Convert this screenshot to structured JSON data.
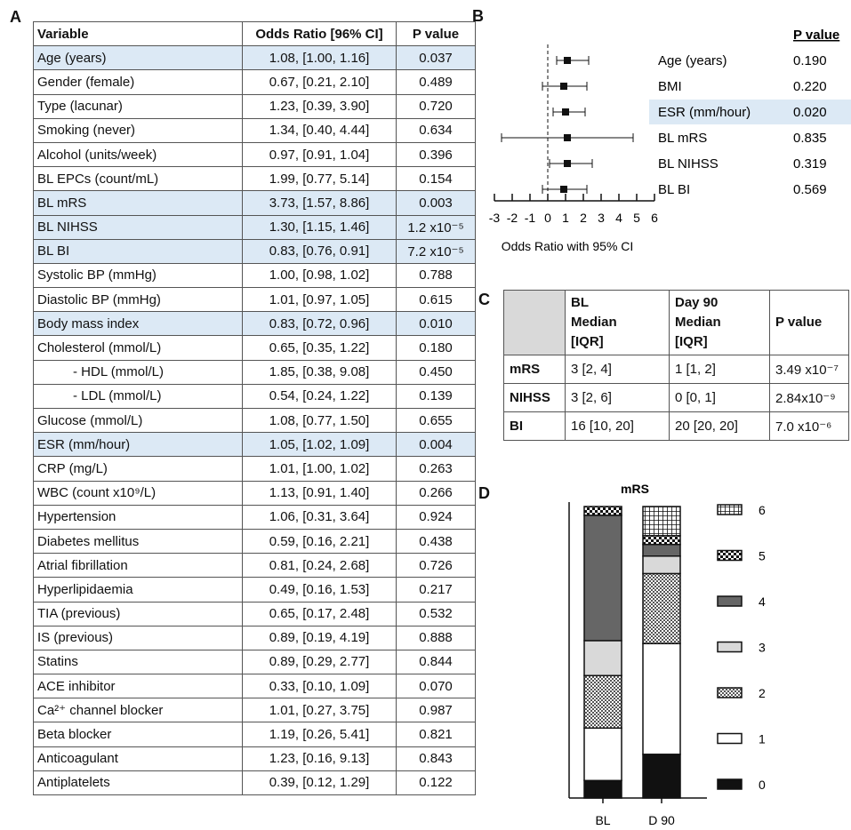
{
  "panels": {
    "a": "A",
    "b": "B",
    "c": "C",
    "d": "D"
  },
  "tableA": {
    "headers": [
      "Variable",
      "Odds Ratio [96% CI]",
      "P value"
    ],
    "rows": [
      {
        "variable": "Age (years)",
        "or": "1.08, [1.00, 1.16]",
        "p": "0.037",
        "highlight": true
      },
      {
        "variable": "Gender (female)",
        "or": "0.67, [0.21, 2.10]",
        "p": "0.489",
        "highlight": false
      },
      {
        "variable": "Type (lacunar)",
        "or": "1.23, [0.39, 3.90]",
        "p": "0.720",
        "highlight": false
      },
      {
        "variable": "Smoking (never)",
        "or": "1.34, [0.40, 4.44]",
        "p": "0.634",
        "highlight": false
      },
      {
        "variable": "Alcohol (units/week)",
        "or": "0.97, [0.91, 1.04]",
        "p": "0.396",
        "highlight": false
      },
      {
        "variable": "BL EPCs (count/mL)",
        "or": "1.99, [0.77, 5.14]",
        "p": "0.154",
        "highlight": false
      },
      {
        "variable": "BL mRS",
        "or": "3.73, [1.57, 8.86]",
        "p": "0.003",
        "highlight": true
      },
      {
        "variable": "BL NIHSS",
        "or": "1.30, [1.15, 1.46]",
        "p": "1.2 x10⁻⁵",
        "highlight": true
      },
      {
        "variable": "BL BI",
        "or": "0.83, [0.76, 0.91]",
        "p": "7.2 x10⁻⁵",
        "highlight": true
      },
      {
        "variable": "Systolic BP (mmHg)",
        "or": "1.00, [0.98, 1.02]",
        "p": "0.788",
        "highlight": false
      },
      {
        "variable": "Diastolic BP (mmHg)",
        "or": "1.01, [0.97, 1.05]",
        "p": "0.615",
        "highlight": false
      },
      {
        "variable": "Body mass index",
        "or": "0.83, [0.72, 0.96]",
        "p": "0.010",
        "highlight": true
      },
      {
        "variable": "Cholesterol (mmol/L)",
        "or": "0.65, [0.35, 1.22]",
        "p": "0.180",
        "highlight": false
      },
      {
        "variable": "- HDL (mmol/L)",
        "or": "1.85, [0.38, 9.08]",
        "p": "0.450",
        "highlight": false,
        "indent": true
      },
      {
        "variable": "- LDL (mmol/L)",
        "or": "0.54, [0.24, 1.22]",
        "p": "0.139",
        "highlight": false,
        "indent": true
      },
      {
        "variable": "Glucose (mmol/L)",
        "or": "1.08, [0.77, 1.50]",
        "p": "0.655",
        "highlight": false
      },
      {
        "variable": "ESR (mm/hour)",
        "or": "1.05, [1.02, 1.09]",
        "p": "0.004",
        "highlight": true
      },
      {
        "variable": "CRP (mg/L)",
        "or": "1.01, [1.00, 1.02]",
        "p": "0.263",
        "highlight": false
      },
      {
        "variable": "WBC (count x10⁹/L)",
        "or": "1.13, [0.91, 1.40]",
        "p": "0.266",
        "highlight": false
      },
      {
        "variable": "Hypertension",
        "or": "1.06, [0.31, 3.64]",
        "p": "0.924",
        "highlight": false
      },
      {
        "variable": "Diabetes mellitus",
        "or": "0.59, [0.16, 2.21]",
        "p": "0.438",
        "highlight": false
      },
      {
        "variable": "Atrial fibrillation",
        "or": "0.81, [0.24, 2.68]",
        "p": "0.726",
        "highlight": false
      },
      {
        "variable": "Hyperlipidaemia",
        "or": "0.49, [0.16, 1.53]",
        "p": "0.217",
        "highlight": false
      },
      {
        "variable": "TIA (previous)",
        "or": "0.65, [0.17, 2.48]",
        "p": "0.532",
        "highlight": false
      },
      {
        "variable": "IS (previous)",
        "or": "0.89, [0.19, 4.19]",
        "p": "0.888",
        "highlight": false
      },
      {
        "variable": "Statins",
        "or": "0.89, [0.29, 2.77]",
        "p": "0.844",
        "highlight": false
      },
      {
        "variable": "ACE inhibitor",
        "or": "0.33, [0.10, 1.09]",
        "p": "0.070",
        "highlight": false
      },
      {
        "variable": "Ca²⁺ channel blocker",
        "or": "1.01, [0.27, 3.75]",
        "p": "0.987",
        "highlight": false
      },
      {
        "variable": "Beta blocker",
        "or": "1.19, [0.26, 5.41]",
        "p": "0.821",
        "highlight": false
      },
      {
        "variable": "Anticoagulant",
        "or": "1.23, [0.16, 9.13]",
        "p": "0.843",
        "highlight": false
      },
      {
        "variable": "Antiplatelets",
        "or": "0.39, [0.12, 1.29]",
        "p": "0.122",
        "highlight": false
      }
    ]
  },
  "tableC": {
    "headers": [
      "",
      "BL\nMedian\n[IQR]",
      "Day 90\nMedian\n[IQR]",
      "P value"
    ],
    "rows": [
      {
        "label": "mRS",
        "bl": "3 [2, 4]",
        "d90": "1 [1, 2]",
        "p": "3.49 x10⁻⁷"
      },
      {
        "label": "NIHSS",
        "bl": "3 [2, 6]",
        "d90": "0 [0, 1]",
        "p": "2.84x10⁻⁹"
      },
      {
        "label": "BI",
        "bl": "16 [10, 20]",
        "d90": "20 [20, 20]",
        "p": "7.0 x10⁻⁶"
      }
    ]
  },
  "chart_data": [
    {
      "type": "scatter",
      "subtype": "forest",
      "xlabel": "Odds Ratio with 95% CI",
      "xlim": [
        -3,
        6
      ],
      "xticks": [
        -3,
        -2,
        -1,
        0,
        1,
        2,
        3,
        4,
        5,
        6
      ],
      "xtick_labels": [
        "-3",
        "-2",
        "-1",
        "0",
        "1",
        "2",
        "3",
        "4",
        "5",
        "6"
      ],
      "reference_line": 0,
      "p_header": "P value",
      "rows": [
        {
          "label": "Age (years)",
          "or": 1.1,
          "lo": 0.5,
          "hi": 2.3,
          "p": "0.190",
          "highlight": false
        },
        {
          "label": "BMI",
          "or": 0.9,
          "lo": -0.3,
          "hi": 2.2,
          "p": "0.220",
          "highlight": false
        },
        {
          "label": "ESR (mm/hour)",
          "or": 1.0,
          "lo": 0.3,
          "hi": 2.1,
          "p": "0.020",
          "highlight": true
        },
        {
          "label": "BL mRS",
          "or": 1.1,
          "lo": -2.6,
          "hi": 4.8,
          "p": "0.835",
          "highlight": false
        },
        {
          "label": "BL NIHSS",
          "or": 1.1,
          "lo": 0.1,
          "hi": 2.5,
          "p": "0.319",
          "highlight": false
        },
        {
          "label": "BL BI",
          "or": 0.9,
          "lo": -0.3,
          "hi": 2.2,
          "p": "0.569",
          "highlight": false
        }
      ]
    },
    {
      "type": "bar",
      "subtype": "stacked-100",
      "title": "mRS",
      "categories": [
        "BL",
        "D 90"
      ],
      "ylim": [
        0,
        100
      ],
      "series": [
        {
          "name": "0",
          "values": [
            6,
            15
          ],
          "pattern": "black"
        },
        {
          "name": "1",
          "values": [
            18,
            38
          ],
          "pattern": "white"
        },
        {
          "name": "2",
          "values": [
            18,
            24
          ],
          "pattern": "crosshatch"
        },
        {
          "name": "3",
          "values": [
            12,
            6
          ],
          "pattern": "light-grey"
        },
        {
          "name": "4",
          "values": [
            43,
            4
          ],
          "pattern": "dark-grey"
        },
        {
          "name": "5",
          "values": [
            3,
            3
          ],
          "pattern": "checker"
        },
        {
          "name": "6",
          "values": [
            0,
            10
          ],
          "pattern": "grid"
        }
      ]
    }
  ]
}
